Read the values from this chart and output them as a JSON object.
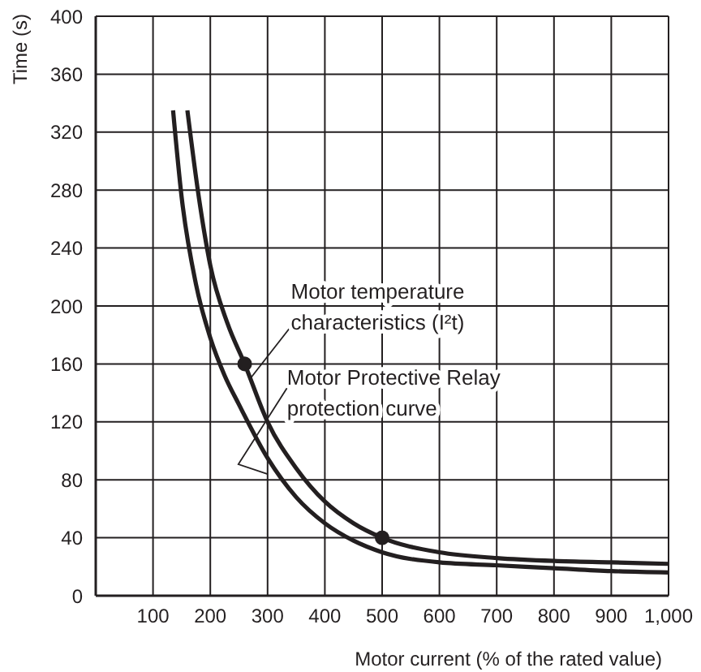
{
  "chart_data": {
    "type": "line",
    "xlabel": "Motor current (% of the rated value)",
    "ylabel": "Time (s)",
    "xlim": [
      0,
      1000
    ],
    "xticks": [
      100,
      200,
      300,
      400,
      500,
      600,
      700,
      800,
      900,
      {
        "value": 1000,
        "label": "1,000"
      }
    ],
    "ylim": [
      0,
      400
    ],
    "yticks": [
      0,
      40,
      80,
      120,
      160,
      200,
      240,
      280,
      320,
      360,
      400
    ],
    "grid": true,
    "series": [
      {
        "color": "#231f20",
        "x": [
          160,
          180,
          200,
          230,
          260,
          300,
          350,
          400,
          450,
          500,
          600,
          700,
          800,
          900,
          1000
        ],
        "values": [
          335,
          275,
          228,
          188,
          160,
          120,
          88,
          65,
          50,
          40,
          30,
          26,
          24,
          23,
          22
        ]
      },
      {
        "color": "#231f20",
        "x": [
          135,
          150,
          175,
          200,
          225,
          250,
          300,
          350,
          400,
          450,
          500,
          600,
          700,
          800,
          900,
          1000
        ],
        "values": [
          335,
          275,
          215,
          178,
          152,
          132,
          95,
          68,
          50,
          38,
          30,
          23,
          21,
          19,
          17,
          16
        ]
      },
      {
        "type": "scatter",
        "marker": "circle",
        "color": "#231f20",
        "x": [
          260,
          500
        ],
        "values": [
          160,
          40
        ]
      }
    ],
    "annotations": [
      {
        "text": "Motor temperature characteristics (I²t)",
        "x": 270,
        "y": 150
      },
      {
        "text": "Motor Protective Relay protection curve",
        "x": 300,
        "y": 84
      }
    ]
  }
}
